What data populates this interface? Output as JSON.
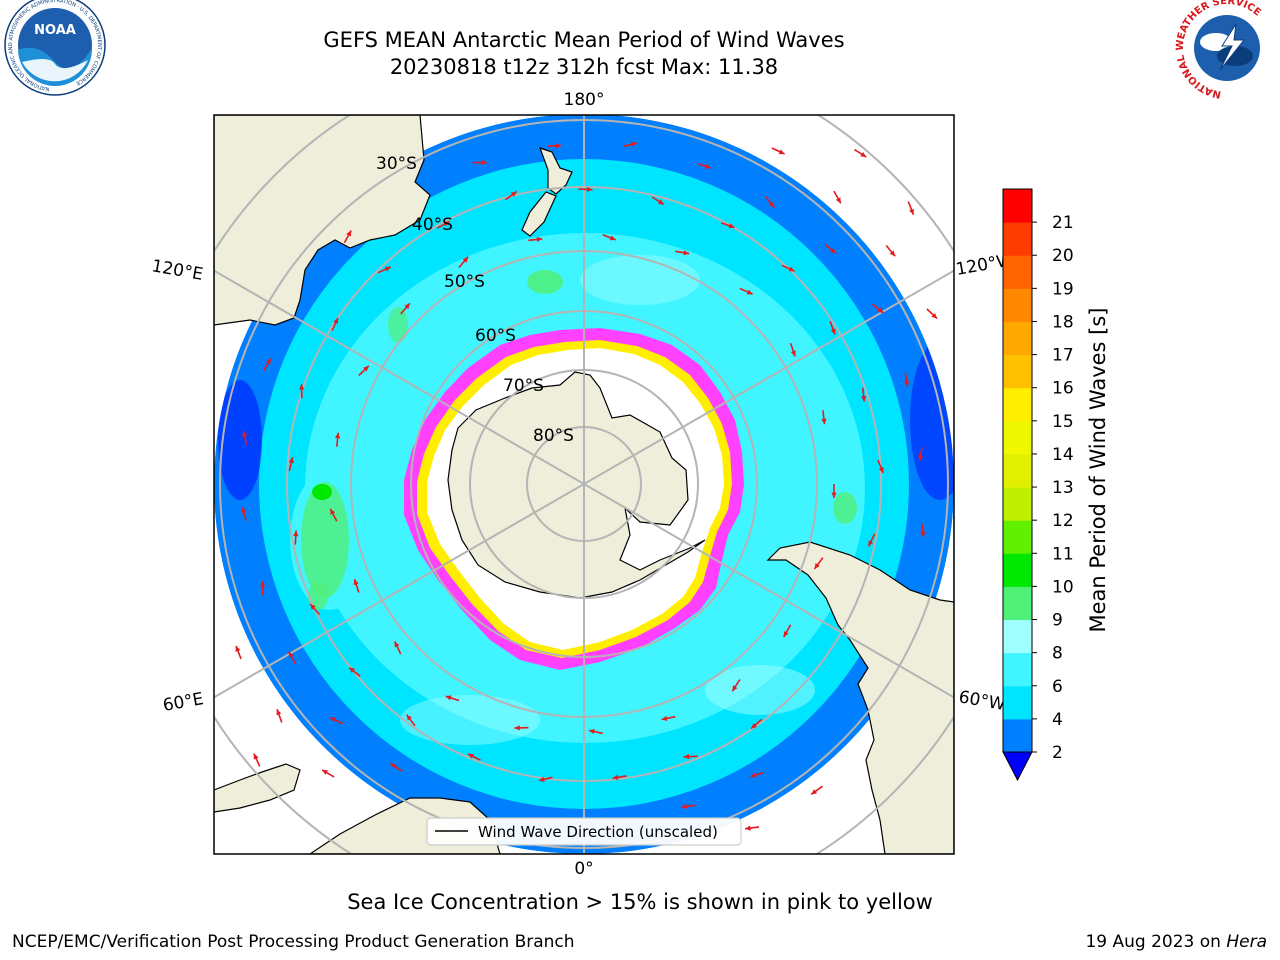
{
  "header": {
    "title_line1": "GEFS MEAN Antarctic Mean Period of Wind Waves",
    "title_line2": "20230818 t12z 312h fcst   Max: 11.38"
  },
  "logos": {
    "left": "NOAA",
    "left_ring_text": "NATIONAL OCEANIC AND ATMOSPHERIC ADMINISTRATION · U.S. DEPARTMENT OF COMMERCE",
    "right_ring_text": "NATIONAL WEATHER SERVICE"
  },
  "map": {
    "projection": "south-polar-stereographic",
    "longitude_labels": {
      "top": "180°",
      "bottom": "0°",
      "upper_left": "120°E",
      "upper_right": "120°W",
      "lower_left": "60°E",
      "lower_right": "60°W"
    },
    "latitude_labels": [
      "30°S",
      "40°S",
      "50°S",
      "60°S",
      "70°S",
      "80°S"
    ],
    "legend_label": "Wind Wave Direction (unscaled)",
    "colors": {
      "land": "#efeedb",
      "ice": "#ffffff",
      "grid": "#b4b4b4",
      "arrow": "#e41a1c",
      "sea_ice_edge": "#ff40ff"
    }
  },
  "colorbar": {
    "label": "Mean Period of Wind Waves [s]",
    "ticks": [
      "2",
      "4",
      "6",
      "8",
      "9",
      "10",
      "11",
      "12",
      "13",
      "14",
      "15",
      "16",
      "17",
      "18",
      "19",
      "20",
      "21"
    ],
    "bins": [
      {
        "from": 2,
        "to": 4,
        "color": "#0080ff"
      },
      {
        "from": 4,
        "to": 6,
        "color": "#00e5ff"
      },
      {
        "from": 6,
        "to": 8,
        "color": "#40f5ff"
      },
      {
        "from": 8,
        "to": 9,
        "color": "#a0ffff"
      },
      {
        "from": 9,
        "to": 10,
        "color": "#50f078"
      },
      {
        "from": 10,
        "to": 11,
        "color": "#00e800"
      },
      {
        "from": 11,
        "to": 12,
        "color": "#60f000"
      },
      {
        "from": 12,
        "to": 13,
        "color": "#c0f000"
      },
      {
        "from": 13,
        "to": 14,
        "color": "#e0f000"
      },
      {
        "from": 14,
        "to": 15,
        "color": "#f0f800"
      },
      {
        "from": 15,
        "to": 16,
        "color": "#ffee00"
      },
      {
        "from": 16,
        "to": 17,
        "color": "#ffc000"
      },
      {
        "from": 17,
        "to": 18,
        "color": "#ffa800"
      },
      {
        "from": 18,
        "to": 19,
        "color": "#ff8800"
      },
      {
        "from": 19,
        "to": 20,
        "color": "#ff6400"
      },
      {
        "from": 20,
        "to": 21,
        "color": "#ff3c00"
      },
      {
        "from": 21,
        "to": 22,
        "color": "#ff0000"
      }
    ],
    "under_color": "#0000ff"
  },
  "caption": "Sea Ice Concentration > 15% is shown in pink to yellow",
  "footer": {
    "left": "NCEP/EMC/Verification Post Processing Product Generation Branch",
    "right_date": "19 Aug 2023 on",
    "right_host": "Hera"
  }
}
